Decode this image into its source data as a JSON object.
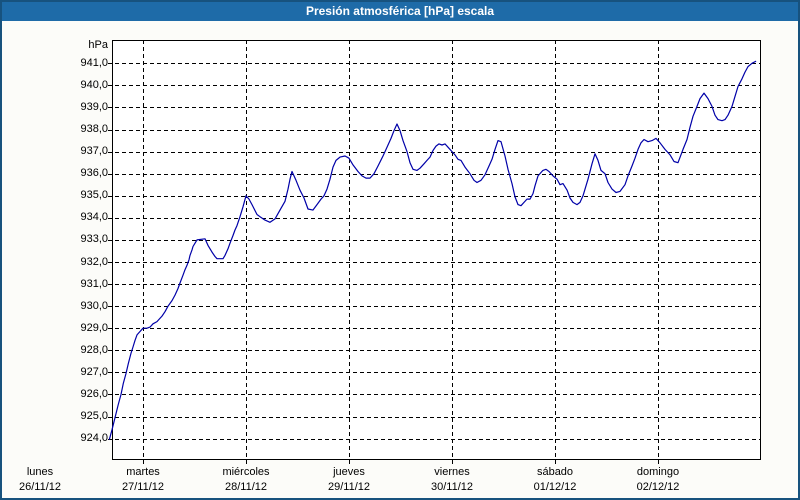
{
  "window": {
    "title": "Presión atmosférica [hPa] escala"
  },
  "colors": {
    "titlebar_bg": "#1E6BA8",
    "titlebar_text": "#FFFFFF",
    "frame_border": "#17527E",
    "content_bg": "#FCFCF9",
    "plot_bg": "#FFFFFF",
    "grid": "#000000",
    "axis": "#000000",
    "line": "#0000A8",
    "label_text": "#000000"
  },
  "chart_data": {
    "type": "line",
    "title": "Presión atmosférica [hPa] escala",
    "grid": "dashed",
    "y_axis": {
      "unit_label": "hPa",
      "min": 924,
      "max": 941,
      "tick_step": 1,
      "tick_labels": [
        "941,0",
        "940,0",
        "939,0",
        "938,0",
        "937,0",
        "936,0",
        "935,0",
        "934,0",
        "933,0",
        "932,0",
        "931,0",
        "930,0",
        "929,0",
        "928,0",
        "927,0",
        "926,0",
        "925,0",
        "924,0"
      ]
    },
    "x_axis": {
      "x_encoding": "days since lunes 26/11/12 00:00",
      "days": [
        {
          "name": "lunes",
          "date": "26/11/12"
        },
        {
          "name": "martes",
          "date": "27/11/12"
        },
        {
          "name": "miércoles",
          "date": "28/11/12"
        },
        {
          "name": "jueves",
          "date": "29/11/12"
        },
        {
          "name": "viernes",
          "date": "30/11/12"
        },
        {
          "name": "sábado",
          "date": "01/12/12"
        },
        {
          "name": "domingo",
          "date": "02/12/12"
        }
      ]
    },
    "series": [
      {
        "name": "presión atmosférica",
        "color": "#0000A8",
        "points": [
          [
            0.673,
            923.95
          ],
          [
            0.699,
            924.4
          ],
          [
            0.728,
            924.95
          ],
          [
            0.76,
            925.55
          ],
          [
            0.786,
            926.0
          ],
          [
            0.809,
            926.5
          ],
          [
            0.835,
            926.95
          ],
          [
            0.857,
            927.4
          ],
          [
            0.883,
            927.85
          ],
          [
            0.903,
            928.15
          ],
          [
            0.922,
            928.45
          ],
          [
            0.942,
            928.7
          ],
          [
            0.971,
            928.85
          ],
          [
            1.0,
            929.0
          ],
          [
            1.039,
            929.0
          ],
          [
            1.068,
            929.05
          ],
          [
            1.097,
            929.2
          ],
          [
            1.136,
            929.3
          ],
          [
            1.155,
            929.4
          ],
          [
            1.184,
            929.55
          ],
          [
            1.214,
            929.75
          ],
          [
            1.243,
            930.0
          ],
          [
            1.282,
            930.25
          ],
          [
            1.311,
            930.5
          ],
          [
            1.34,
            930.8
          ],
          [
            1.359,
            931.05
          ],
          [
            1.388,
            931.4
          ],
          [
            1.408,
            931.65
          ],
          [
            1.427,
            931.85
          ],
          [
            1.447,
            932.1
          ],
          [
            1.456,
            932.3
          ],
          [
            1.476,
            932.55
          ],
          [
            1.485,
            932.7
          ],
          [
            1.505,
            932.85
          ],
          [
            1.524,
            933.0
          ],
          [
            1.602,
            933.05
          ],
          [
            1.631,
            932.75
          ],
          [
            1.67,
            932.45
          ],
          [
            1.699,
            932.25
          ],
          [
            1.718,
            932.15
          ],
          [
            1.777,
            932.15
          ],
          [
            1.796,
            932.3
          ],
          [
            1.825,
            932.6
          ],
          [
            1.845,
            932.85
          ],
          [
            1.874,
            933.2
          ],
          [
            1.893,
            933.45
          ],
          [
            1.913,
            933.65
          ],
          [
            1.942,
            934.05
          ],
          [
            1.971,
            934.5
          ],
          [
            2.0,
            935.0
          ],
          [
            2.029,
            934.85
          ],
          [
            2.058,
            934.6
          ],
          [
            2.107,
            934.15
          ],
          [
            2.136,
            934.05
          ],
          [
            2.184,
            933.9
          ],
          [
            2.233,
            933.8
          ],
          [
            2.282,
            933.95
          ],
          [
            2.33,
            934.35
          ],
          [
            2.379,
            934.75
          ],
          [
            2.408,
            935.3
          ],
          [
            2.427,
            935.75
          ],
          [
            2.447,
            936.1
          ],
          [
            2.485,
            935.7
          ],
          [
            2.524,
            935.25
          ],
          [
            2.563,
            934.9
          ],
          [
            2.602,
            934.4
          ],
          [
            2.65,
            934.35
          ],
          [
            2.689,
            934.6
          ],
          [
            2.728,
            934.85
          ],
          [
            2.757,
            935.0
          ],
          [
            2.786,
            935.3
          ],
          [
            2.816,
            935.75
          ],
          [
            2.845,
            936.3
          ],
          [
            2.874,
            936.6
          ],
          [
            2.913,
            936.75
          ],
          [
            2.961,
            936.8
          ],
          [
            3.0,
            936.7
          ],
          [
            3.039,
            936.4
          ],
          [
            3.087,
            936.1
          ],
          [
            3.126,
            935.9
          ],
          [
            3.165,
            935.8
          ],
          [
            3.204,
            935.8
          ],
          [
            3.243,
            936.0
          ],
          [
            3.282,
            936.35
          ],
          [
            3.33,
            936.8
          ],
          [
            3.369,
            937.2
          ],
          [
            3.408,
            937.6
          ],
          [
            3.437,
            937.95
          ],
          [
            3.466,
            938.25
          ],
          [
            3.495,
            937.95
          ],
          [
            3.524,
            937.5
          ],
          [
            3.563,
            937.0
          ],
          [
            3.592,
            936.5
          ],
          [
            3.621,
            936.2
          ],
          [
            3.66,
            936.15
          ],
          [
            3.689,
            936.25
          ],
          [
            3.728,
            936.45
          ],
          [
            3.757,
            936.6
          ],
          [
            3.786,
            936.75
          ],
          [
            3.816,
            937.05
          ],
          [
            3.845,
            937.25
          ],
          [
            3.874,
            937.35
          ],
          [
            3.903,
            937.3
          ],
          [
            3.932,
            937.35
          ],
          [
            3.961,
            937.2
          ],
          [
            4.0,
            937.0
          ],
          [
            4.029,
            936.85
          ],
          [
            4.058,
            936.65
          ],
          [
            4.087,
            936.6
          ],
          [
            4.126,
            936.3
          ],
          [
            4.175,
            936.0
          ],
          [
            4.214,
            935.7
          ],
          [
            4.243,
            935.6
          ],
          [
            4.282,
            935.7
          ],
          [
            4.32,
            935.95
          ],
          [
            4.359,
            936.35
          ],
          [
            4.388,
            936.65
          ],
          [
            4.417,
            937.1
          ],
          [
            4.447,
            937.5
          ],
          [
            4.476,
            937.45
          ],
          [
            4.515,
            936.8
          ],
          [
            4.544,
            936.2
          ],
          [
            4.583,
            935.55
          ],
          [
            4.612,
            934.95
          ],
          [
            4.641,
            934.6
          ],
          [
            4.67,
            934.55
          ],
          [
            4.699,
            934.7
          ],
          [
            4.728,
            934.85
          ],
          [
            4.757,
            934.85
          ],
          [
            4.786,
            935.1
          ],
          [
            4.806,
            935.45
          ],
          [
            4.835,
            935.9
          ],
          [
            4.883,
            936.15
          ],
          [
            4.913,
            936.2
          ],
          [
            4.942,
            936.1
          ],
          [
            4.981,
            935.9
          ],
          [
            5.019,
            935.75
          ],
          [
            5.049,
            935.5
          ],
          [
            5.078,
            935.55
          ],
          [
            5.117,
            935.25
          ],
          [
            5.146,
            934.9
          ],
          [
            5.175,
            934.7
          ],
          [
            5.214,
            934.6
          ],
          [
            5.243,
            934.7
          ],
          [
            5.272,
            935.0
          ],
          [
            5.32,
            935.75
          ],
          [
            5.359,
            936.45
          ],
          [
            5.388,
            936.9
          ],
          [
            5.417,
            936.6
          ],
          [
            5.447,
            936.15
          ],
          [
            5.485,
            936.0
          ],
          [
            5.515,
            935.6
          ],
          [
            5.553,
            935.3
          ],
          [
            5.592,
            935.15
          ],
          [
            5.631,
            935.2
          ],
          [
            5.68,
            935.5
          ],
          [
            5.709,
            935.9
          ],
          [
            5.748,
            936.35
          ],
          [
            5.777,
            936.7
          ],
          [
            5.806,
            937.1
          ],
          [
            5.835,
            937.4
          ],
          [
            5.864,
            937.55
          ],
          [
            5.903,
            937.45
          ],
          [
            5.942,
            937.5
          ],
          [
            5.981,
            937.6
          ],
          [
            6.019,
            937.4
          ],
          [
            6.068,
            937.1
          ],
          [
            6.117,
            936.85
          ],
          [
            6.155,
            936.55
          ],
          [
            6.194,
            936.5
          ],
          [
            6.243,
            937.1
          ],
          [
            6.282,
            937.55
          ],
          [
            6.311,
            938.1
          ],
          [
            6.34,
            938.6
          ],
          [
            6.379,
            939.05
          ],
          [
            6.408,
            939.4
          ],
          [
            6.447,
            939.65
          ],
          [
            6.485,
            939.4
          ],
          [
            6.524,
            939.05
          ],
          [
            6.553,
            938.65
          ],
          [
            6.583,
            938.45
          ],
          [
            6.621,
            938.4
          ],
          [
            6.65,
            938.45
          ],
          [
            6.68,
            938.65
          ],
          [
            6.718,
            939.05
          ],
          [
            6.748,
            939.5
          ],
          [
            6.777,
            939.95
          ],
          [
            6.816,
            940.3
          ],
          [
            6.845,
            940.6
          ],
          [
            6.874,
            940.85
          ],
          [
            6.913,
            941.0
          ],
          [
            6.952,
            941.1
          ]
        ]
      }
    ]
  }
}
